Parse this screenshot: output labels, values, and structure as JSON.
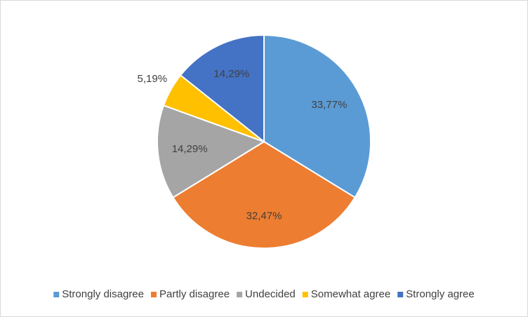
{
  "chart_data": {
    "type": "pie",
    "categories": [
      "Strongly disagree",
      "Partly disagree",
      "Undecided",
      "Somewhat agree",
      "Strongly agree"
    ],
    "values": [
      33.77,
      32.47,
      14.29,
      5.19,
      14.29
    ],
    "value_labels": [
      "33,77%",
      "32,47%",
      "14,29%",
      "5,19%",
      "14,29%"
    ],
    "colors": [
      "#5b9bd5",
      "#ed7d31",
      "#a5a5a5",
      "#ffc000",
      "#4472c4"
    ],
    "legend": "bottom"
  }
}
